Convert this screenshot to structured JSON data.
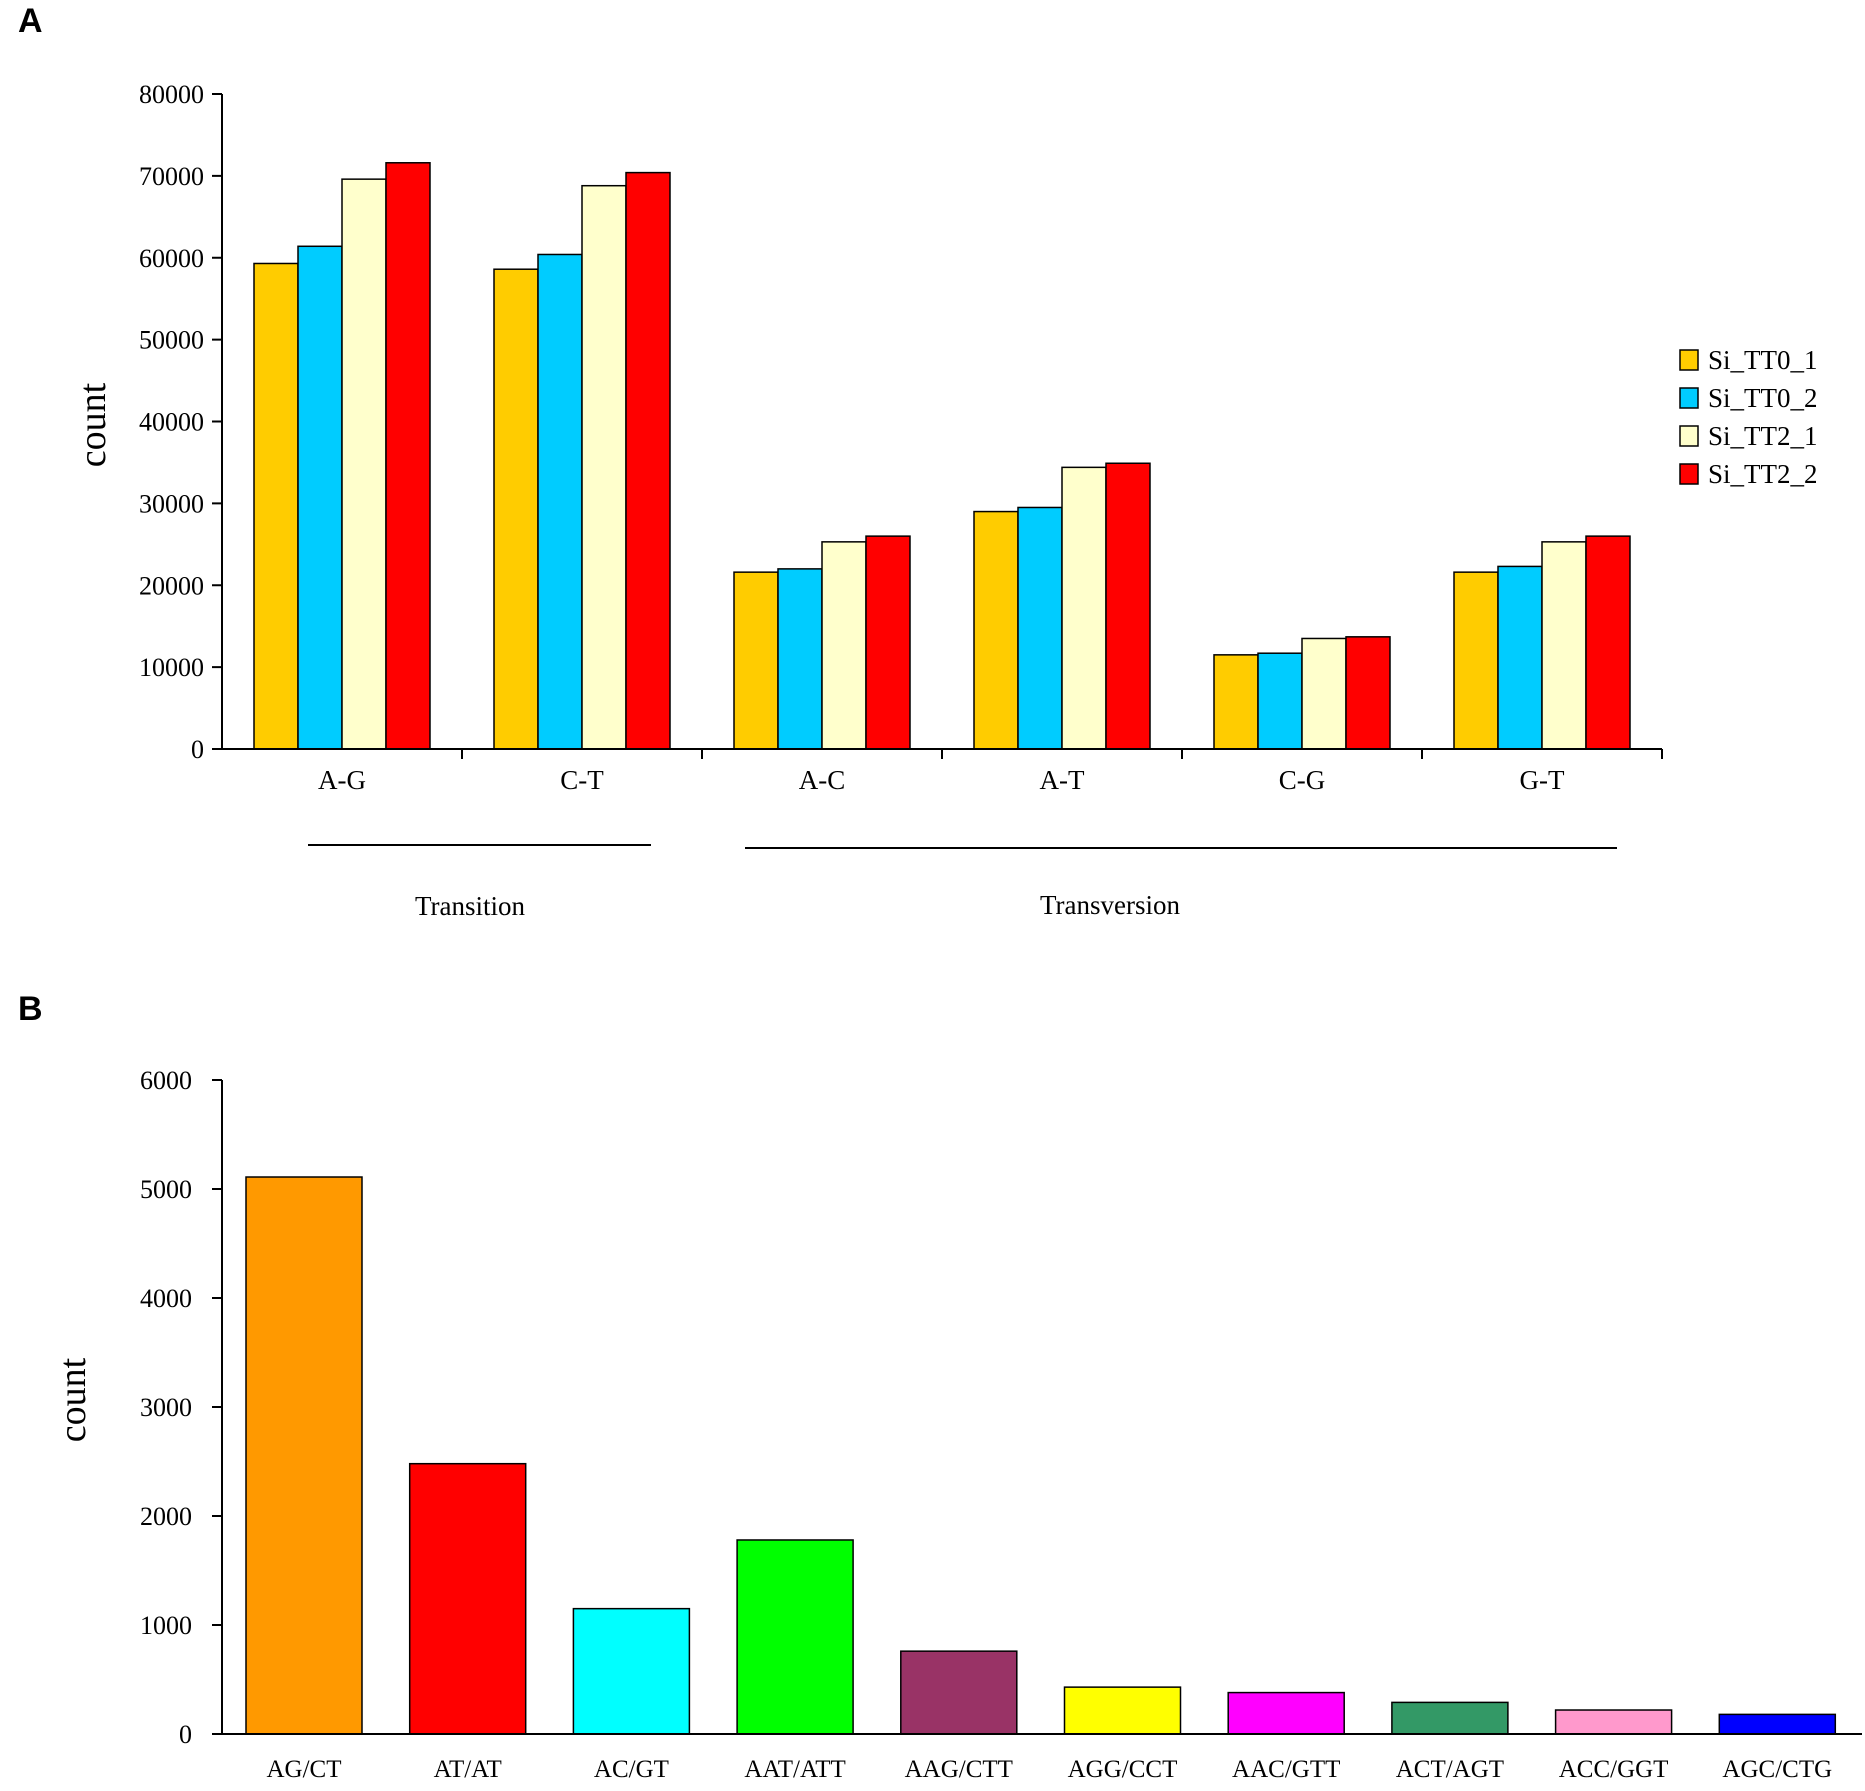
{
  "chart_data": [
    {
      "panel": "A",
      "type": "bar",
      "title": "",
      "xlabel": "",
      "ylabel": "count",
      "ylim": [
        0,
        80000
      ],
      "yticks": [
        "0",
        "10000",
        "20000",
        "30000",
        "40000",
        "50000",
        "60000",
        "70000",
        "80000"
      ],
      "categories": [
        "A-G",
        "C-T",
        "A-C",
        "A-T",
        "C-G",
        "G-T"
      ],
      "series": [
        {
          "name": "Si_TT0_1",
          "color": "#FFCC00",
          "values": [
            59300,
            58600,
            21600,
            29000,
            11500,
            21600
          ]
        },
        {
          "name": "Si_TT0_2",
          "color": "#00CCFF",
          "values": [
            61400,
            60400,
            22000,
            29500,
            11700,
            22300
          ]
        },
        {
          "name": "Si_TT2_1",
          "color": "#FFFFCC",
          "values": [
            69600,
            68800,
            25300,
            34400,
            13500,
            25300
          ]
        },
        {
          "name": "Si_TT2_2",
          "color": "#FF0000",
          "values": [
            71600,
            70400,
            26000,
            34900,
            13700,
            26000
          ]
        }
      ],
      "groups": [
        {
          "label": "Transition",
          "categories": [
            "A-G",
            "C-T"
          ]
        },
        {
          "label": "Transversion",
          "categories": [
            "A-C",
            "A-T",
            "C-G",
            "G-T"
          ]
        }
      ],
      "legend_position": "right"
    },
    {
      "panel": "B",
      "type": "bar",
      "title": "",
      "xlabel": "",
      "ylabel": "count",
      "ylim": [
        0,
        6000
      ],
      "yticks": [
        "0",
        "1000",
        "2000",
        "3000",
        "4000",
        "5000",
        "6000"
      ],
      "categories": [
        "AG/CT",
        "AT/AT",
        "AC/GT",
        "AAT/ATT",
        "AAG/CTT",
        "AGG/CCT",
        "AAC/GTT",
        "ACT/AGT",
        "ACC/GGT",
        "AGC/CTG"
      ],
      "values": [
        5110,
        2480,
        1150,
        1780,
        760,
        430,
        380,
        290,
        220,
        180
      ],
      "colors": [
        "#FF9900",
        "#FF0000",
        "#00FFFF",
        "#00FF00",
        "#993366",
        "#FFFF00",
        "#FF00FF",
        "#339966",
        "#FF99CC",
        "#0000FF"
      ]
    }
  ]
}
